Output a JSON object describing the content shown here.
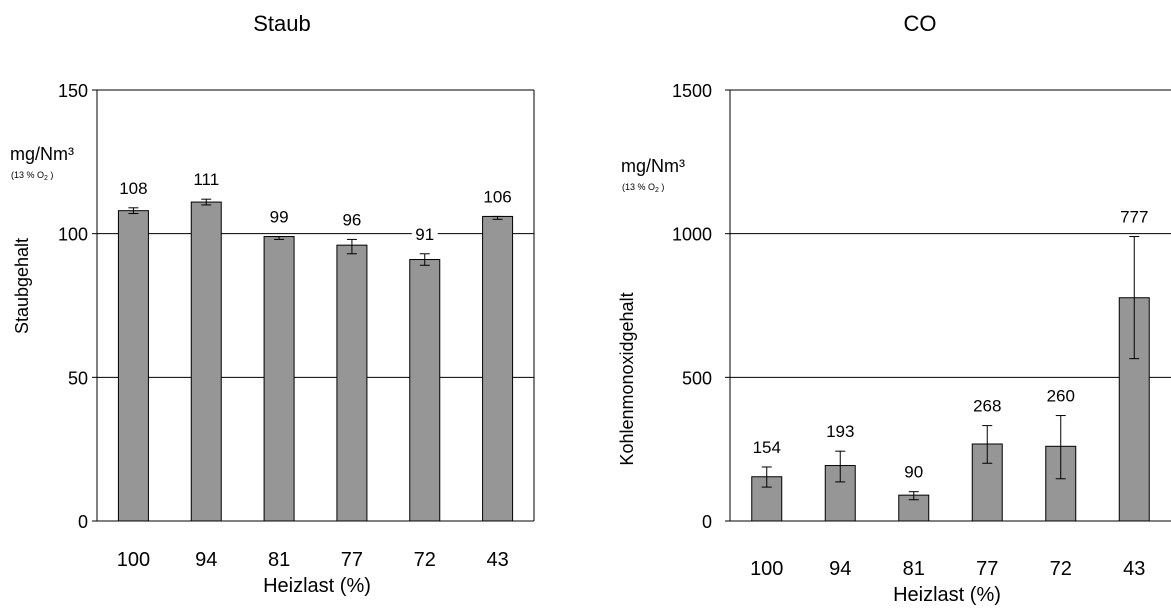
{
  "chart_data": [
    {
      "type": "bar",
      "title": "Staub",
      "xlabel": "Heizlast (%)",
      "ylabel": "Staubgehalt",
      "unit": "mg/Nm³",
      "unit_note_prefix": "(13 % O",
      "unit_note_sub": "2",
      "unit_note_suffix": " )",
      "categories": [
        "100",
        "94",
        "81",
        "77",
        "72",
        "43"
      ],
      "values": [
        108,
        111,
        99,
        96,
        91,
        106
      ],
      "data_labels": [
        "108",
        "111",
        "99",
        "96",
        "91",
        "106"
      ],
      "error_low": [
        107,
        110,
        98,
        93,
        89,
        105
      ],
      "error_high": [
        109,
        112,
        99,
        98,
        93,
        106
      ],
      "ylim": [
        0,
        150
      ],
      "yticks": [
        0,
        50,
        100,
        150
      ],
      "gridlines": [
        50,
        100
      ],
      "bar_color": "#969696"
    },
    {
      "type": "bar",
      "title": "CO",
      "xlabel": "Heizlast (%)",
      "ylabel": "Kohlenmonoxidgehalt",
      "unit": "mg/Nm³",
      "unit_note_prefix": "(13 % O",
      "unit_note_sub": "2",
      "unit_note_suffix": " )",
      "categories": [
        "100",
        "94",
        "81",
        "77",
        "72",
        "43"
      ],
      "values": [
        154,
        193,
        90,
        268,
        260,
        777
      ],
      "data_labels": [
        "154",
        "193",
        "90",
        "268",
        "260",
        "777"
      ],
      "error_low": [
        118,
        136,
        74,
        201,
        147,
        565
      ],
      "error_high": [
        188,
        243,
        102,
        332,
        367,
        990
      ],
      "ylim": [
        0,
        1500
      ],
      "yticks": [
        0,
        500,
        1000,
        1500
      ],
      "gridlines": [
        500,
        1000
      ],
      "bar_color": "#969696"
    }
  ]
}
